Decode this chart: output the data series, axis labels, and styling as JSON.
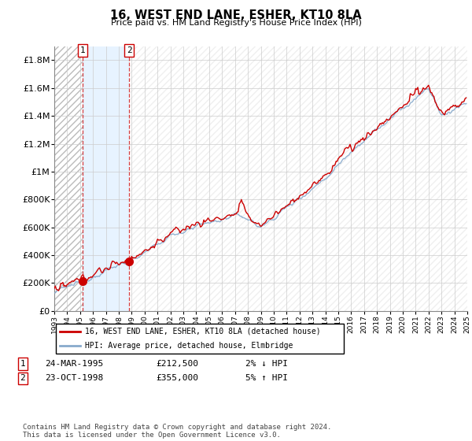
{
  "title": "16, WEST END LANE, ESHER, KT10 8LA",
  "subtitle": "Price paid vs. HM Land Registry's House Price Index (HPI)",
  "ylim": [
    0,
    1900000
  ],
  "yticks": [
    0,
    200000,
    400000,
    600000,
    800000,
    1000000,
    1200000,
    1400000,
    1600000,
    1800000
  ],
  "ytick_labels": [
    "£0",
    "£200K",
    "£400K",
    "£600K",
    "£800K",
    "£1M",
    "£1.2M",
    "£1.4M",
    "£1.6M",
    "£1.8M"
  ],
  "xstart_year": 1993,
  "xend_year": 2025,
  "t1_year": 1995.208,
  "t1_price": 212500,
  "t2_year": 1998.792,
  "t2_price": 355000,
  "legend_line1": "16, WEST END LANE, ESHER, KT10 8LA (detached house)",
  "legend_line2": "HPI: Average price, detached house, Elmbridge",
  "row1_num": "1",
  "row1_date": "24-MAR-1995",
  "row1_price": "£212,500",
  "row1_pct": "2% ↓ HPI",
  "row2_num": "2",
  "row2_date": "23-OCT-1998",
  "row2_price": "£355,000",
  "row2_pct": "5% ↑ HPI",
  "footer": "Contains HM Land Registry data © Crown copyright and database right 2024.\nThis data is licensed under the Open Government Licence v3.0.",
  "line_color_red": "#cc0000",
  "line_color_blue": "#88aacc",
  "grid_color": "#cccccc"
}
